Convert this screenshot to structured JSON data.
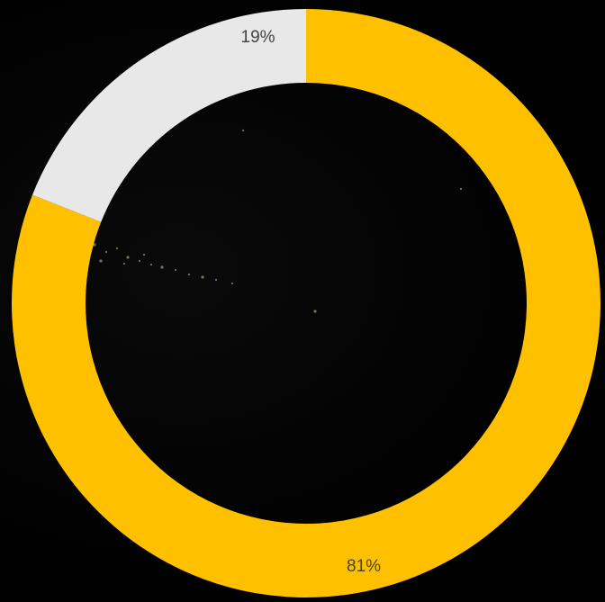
{
  "chart_data": {
    "type": "pie",
    "variant": "donut",
    "slices": [
      {
        "value": 81,
        "label": "81%",
        "color": "#FFC000"
      },
      {
        "value": 19,
        "label": "19%",
        "color": "#E8E8E8"
      }
    ],
    "start_angle_deg": 0,
    "direction": "clockwise",
    "legend": "none",
    "background": "#000000"
  }
}
